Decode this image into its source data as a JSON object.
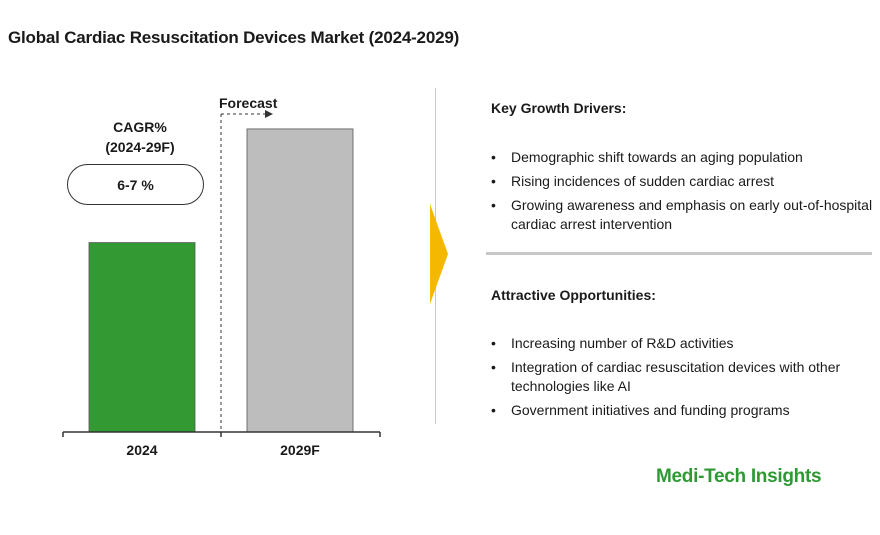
{
  "title": "Global Cardiac Resuscitation Devices Market (2024-2029)",
  "cagr": {
    "label_line1": "CAGR%",
    "label_line2": "(2024-29F)",
    "value": "6-7 %"
  },
  "forecast_label": "Forecast",
  "chart_data": {
    "type": "bar",
    "title": "Global Cardiac Resuscitation Devices Market (2024-2029)",
    "categories": [
      "2024",
      "2029F"
    ],
    "values": [
      100,
      160
    ],
    "colors": [
      "#339933",
      "#bdbdbd"
    ],
    "xlabel": "",
    "ylabel": "",
    "ylim": [
      0,
      170
    ],
    "grid": false,
    "annotations": [
      "Forecast",
      "CAGR% (2024-29F)",
      "6-7 %"
    ]
  },
  "drivers": {
    "title": "Key Growth Drivers:",
    "items": [
      "Demographic shift towards an aging population",
      "Rising incidences of sudden cardiac arrest",
      "Growing awareness and emphasis on early out-of-hospital cardiac arrest intervention"
    ]
  },
  "opportunities": {
    "title": "Attractive Opportunities:",
    "items": [
      "Increasing number of R&D activities",
      "Integration of cardiac resuscitation devices  with other technologies like AI",
      "Government initiatives and funding programs"
    ]
  },
  "brand": "Medi-Tech Insights",
  "colors": {
    "accent": "#f5b800",
    "brand_green": "#2e9a33"
  }
}
